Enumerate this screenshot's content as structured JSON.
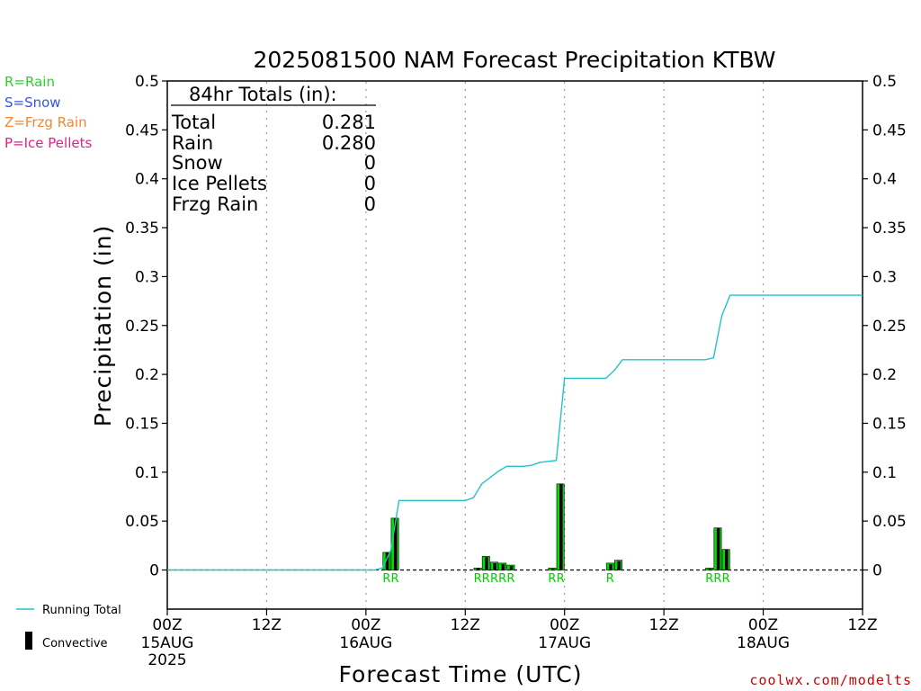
{
  "chart_data": {
    "type": "bar",
    "title": "2025081500 NAM Forecast Precipitation KTBW",
    "xlabel": "Forecast Time (UTC)",
    "ylabel": "Precipitation (in)",
    "ylim": [
      0,
      0.5
    ],
    "xlim": [
      0,
      84
    ],
    "y_ticks": [
      0,
      0.05,
      0.1,
      0.15,
      0.2,
      0.25,
      0.3,
      0.35,
      0.4,
      0.45,
      0.5
    ],
    "y_tick_labels": [
      "0",
      "0.05",
      "0.1",
      "0.15",
      "0.2",
      "0.25",
      "0.3",
      "0.35",
      "0.4",
      "0.45",
      "0.5"
    ],
    "x_ticks": [
      {
        "hour": 0,
        "line1": "00Z",
        "line2": "15AUG",
        "line3": "2025"
      },
      {
        "hour": 12,
        "line1": "12Z",
        "line2": "",
        "line3": ""
      },
      {
        "hour": 24,
        "line1": "00Z",
        "line2": "16AUG",
        "line3": ""
      },
      {
        "hour": 36,
        "line1": "12Z",
        "line2": "",
        "line3": ""
      },
      {
        "hour": 48,
        "line1": "00Z",
        "line2": "17AUG",
        "line3": ""
      },
      {
        "hour": 60,
        "line1": "12Z",
        "line2": "",
        "line3": ""
      },
      {
        "hour": 72,
        "line1": "00Z",
        "line2": "18AUG",
        "line3": ""
      },
      {
        "hour": 84,
        "line1": "12Z",
        "line2": "",
        "line3": ""
      }
    ],
    "grid": "dotted vertical",
    "bars": [
      {
        "hour": 27,
        "total": 0.018,
        "convective": 0.018
      },
      {
        "hour": 28,
        "total": 0.053,
        "convective": 0.053
      },
      {
        "hour": 38,
        "total": 0.002,
        "convective": 0.002
      },
      {
        "hour": 39,
        "total": 0.014,
        "convective": 0.013
      },
      {
        "hour": 40,
        "total": 0.008,
        "convective": 0.007
      },
      {
        "hour": 41,
        "total": 0.007,
        "convective": 0.006
      },
      {
        "hour": 42,
        "total": 0.005,
        "convective": 0.004
      },
      {
        "hour": 47,
        "total": 0.002,
        "convective": 0.001
      },
      {
        "hour": 48,
        "total": 0.088,
        "convective": 0.088
      },
      {
        "hour": 54,
        "total": 0.007,
        "convective": 0.006
      },
      {
        "hour": 55,
        "total": 0.01,
        "convective": 0.009
      },
      {
        "hour": 66,
        "total": 0.002,
        "convective": 0.001
      },
      {
        "hour": 67,
        "total": 0.043,
        "convective": 0.043
      },
      {
        "hour": 68,
        "total": 0.021,
        "convective": 0.021
      }
    ],
    "running_total": {
      "name": "Running Total",
      "color": "#22c4c8",
      "points": [
        [
          0,
          0
        ],
        [
          25,
          0
        ],
        [
          26,
          0.002
        ],
        [
          27,
          0.02
        ],
        [
          28,
          0.071
        ],
        [
          36,
          0.071
        ],
        [
          37,
          0.074
        ],
        [
          38,
          0.088
        ],
        [
          40,
          0.101
        ],
        [
          41,
          0.106
        ],
        [
          43,
          0.106
        ],
        [
          44,
          0.107
        ],
        [
          45,
          0.11
        ],
        [
          47,
          0.112
        ],
        [
          48,
          0.196
        ],
        [
          53,
          0.196
        ],
        [
          54,
          0.204
        ],
        [
          55,
          0.215
        ],
        [
          65,
          0.215
        ],
        [
          66,
          0.217
        ],
        [
          67,
          0.26
        ],
        [
          68,
          0.281
        ],
        [
          84,
          0.281
        ]
      ]
    },
    "precip_type_markers": [
      {
        "hour": 27,
        "label": "R"
      },
      {
        "hour": 28,
        "label": "R"
      },
      {
        "hour": 38,
        "label": "R"
      },
      {
        "hour": 39,
        "label": "R"
      },
      {
        "hour": 40,
        "label": "R"
      },
      {
        "hour": 41,
        "label": "R"
      },
      {
        "hour": 42,
        "label": "R"
      },
      {
        "hour": 47,
        "label": "R"
      },
      {
        "hour": 48,
        "label": "R"
      },
      {
        "hour": 54,
        "label": "R"
      },
      {
        "hour": 66,
        "label": "R"
      },
      {
        "hour": 67,
        "label": "R"
      },
      {
        "hour": 68,
        "label": "R"
      }
    ]
  },
  "totals": {
    "header": "84hr Totals (in):",
    "rows": [
      {
        "label": "Total",
        "value": "0.281"
      },
      {
        "label": "Rain",
        "value": "0.280"
      },
      {
        "label": "Snow",
        "value": "0"
      },
      {
        "label": "Ice Pellets",
        "value": "0"
      },
      {
        "label": "Frzg Rain",
        "value": "0"
      }
    ]
  },
  "type_legend": [
    {
      "text": "R=Rain",
      "color": "#33cc33"
    },
    {
      "text": "S=Snow",
      "color": "#3355ee"
    },
    {
      "text": "Z=Frzg Rain",
      "color": "#ee8833"
    },
    {
      "text": "P=Ice Pellets",
      "color": "#dd2288"
    }
  ],
  "bottom_legend": {
    "running_total_label": "Running Total",
    "convective_label": "Convective"
  },
  "credit": "coolwx.com/modelts",
  "colors": {
    "bar_total": "#00dd00",
    "bar_convective": "#000000",
    "running_total": "#22c4c8",
    "grid": "#999999"
  }
}
